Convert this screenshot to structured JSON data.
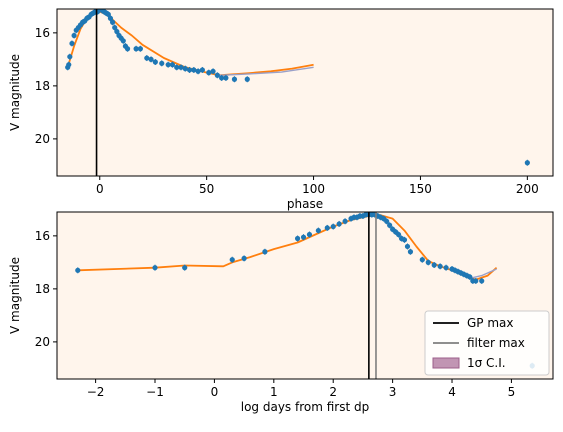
{
  "chart_data": [
    {
      "type": "scatter",
      "xlabel": "phase",
      "ylabel": "V magnitude",
      "xlim": [
        -20,
        212
      ],
      "ylim": [
        21.4,
        15.1
      ],
      "y_inverted": true,
      "background": "#fff5ec",
      "xticks": [
        0,
        50,
        100,
        150,
        200
      ],
      "yticks": [
        16,
        18,
        20
      ],
      "vlines": [
        {
          "x": -1.5,
          "color": "#000000"
        }
      ],
      "series": [
        {
          "kind": "points",
          "color": "#1f77b4",
          "x": [
            -15,
            -14.5,
            -14,
            -13,
            -12,
            -11,
            -10,
            -9,
            -8,
            -7,
            -6,
            -5,
            -4,
            -3,
            -2,
            -1,
            0,
            1,
            2,
            3,
            4,
            5,
            6,
            7,
            8,
            9,
            10,
            11,
            12,
            13,
            17,
            19,
            22,
            24,
            26,
            29,
            32,
            34,
            36,
            38,
            40,
            42,
            44,
            46,
            48,
            51,
            53,
            55,
            57,
            59,
            63,
            69,
            200
          ],
          "y": [
            17.3,
            17.2,
            16.9,
            16.4,
            16.1,
            15.9,
            15.8,
            15.7,
            15.6,
            15.55,
            15.45,
            15.4,
            15.3,
            15.25,
            15.2,
            15.2,
            15.1,
            15.15,
            15.2,
            15.25,
            15.3,
            15.45,
            15.6,
            15.8,
            15.95,
            16.1,
            16.2,
            16.3,
            16.5,
            16.6,
            16.6,
            16.6,
            16.95,
            17.0,
            17.1,
            17.15,
            17.2,
            17.2,
            17.3,
            17.3,
            17.35,
            17.4,
            17.4,
            17.45,
            17.4,
            17.5,
            17.45,
            17.6,
            17.7,
            17.7,
            17.75,
            17.75,
            20.9
          ]
        },
        {
          "kind": "line",
          "color": "#ff7f0e",
          "x": [
            -15,
            -12,
            -9,
            -6,
            -3,
            0,
            3,
            6,
            10,
            15,
            20,
            30,
            40,
            50,
            56,
            60,
            70,
            80,
            90,
            100
          ],
          "y": [
            17.3,
            16.5,
            15.85,
            15.45,
            15.25,
            15.2,
            15.3,
            15.5,
            15.8,
            16.1,
            16.45,
            16.95,
            17.3,
            17.5,
            17.6,
            17.58,
            17.52,
            17.45,
            17.35,
            17.2
          ]
        },
        {
          "kind": "line",
          "color": "#9aa0c8",
          "x": [
            56,
            70,
            85,
            100
          ],
          "y": [
            17.6,
            17.55,
            17.48,
            17.3
          ]
        }
      ]
    },
    {
      "type": "scatter",
      "xlabel": "log days from first dp",
      "ylabel": "V magnitude",
      "xlim": [
        -2.65,
        5.7
      ],
      "ylim": [
        21.4,
        15.1
      ],
      "y_inverted": true,
      "background": "#fff5ec",
      "xticks": [
        -2,
        -1,
        0,
        1,
        2,
        3,
        4,
        5
      ],
      "yticks": [
        16,
        18,
        20
      ],
      "vlines": [
        {
          "x": 2.6,
          "color": "#000000"
        },
        {
          "x": 2.72,
          "color": "#7f7f7f"
        }
      ],
      "series": [
        {
          "kind": "points",
          "color": "#1f77b4",
          "x": [
            -2.3,
            -1.0,
            -0.5,
            0.3,
            0.5,
            0.85,
            1.4,
            1.5,
            1.6,
            1.75,
            1.9,
            2.0,
            2.1,
            2.2,
            2.3,
            2.35,
            2.4,
            2.45,
            2.5,
            2.55,
            2.6,
            2.65,
            2.7,
            2.75,
            2.8,
            2.85,
            2.9,
            2.95,
            3.0,
            3.05,
            3.1,
            3.15,
            3.2,
            3.25,
            3.3,
            3.5,
            3.6,
            3.7,
            3.8,
            3.9,
            4.0,
            4.05,
            4.1,
            4.15,
            4.2,
            4.25,
            4.3,
            4.35,
            4.4,
            4.5,
            5.35
          ],
          "y": [
            17.3,
            17.2,
            17.2,
            16.9,
            16.85,
            16.6,
            16.1,
            16.05,
            15.95,
            15.8,
            15.7,
            15.65,
            15.55,
            15.45,
            15.35,
            15.3,
            15.3,
            15.25,
            15.25,
            15.2,
            15.2,
            15.2,
            15.2,
            15.25,
            15.3,
            15.35,
            15.45,
            15.6,
            15.75,
            15.85,
            15.95,
            16.1,
            16.15,
            16.4,
            16.6,
            16.9,
            17.0,
            17.1,
            17.15,
            17.2,
            17.25,
            17.3,
            17.35,
            17.4,
            17.45,
            17.5,
            17.55,
            17.7,
            17.7,
            17.7,
            20.9
          ]
        },
        {
          "kind": "line",
          "color": "#ff7f0e",
          "x": [
            -2.3,
            -1.0,
            -0.5,
            0.15,
            0.3,
            0.6,
            1.0,
            1.4,
            1.7,
            2.0,
            2.3,
            2.6,
            2.8,
            3.0,
            3.2,
            3.4,
            3.6,
            3.8,
            4.0,
            4.2,
            4.4,
            4.6,
            4.75
          ],
          "y": [
            17.3,
            17.2,
            17.12,
            17.15,
            17.0,
            16.8,
            16.5,
            16.25,
            15.95,
            15.65,
            15.4,
            15.25,
            15.22,
            15.35,
            15.8,
            16.4,
            16.95,
            17.15,
            17.3,
            17.5,
            17.65,
            17.5,
            17.2
          ]
        },
        {
          "kind": "line",
          "color": "#9aa0c8",
          "x": [
            4.3,
            4.5,
            4.75
          ],
          "y": [
            17.6,
            17.5,
            17.25
          ]
        }
      ],
      "legend": {
        "placement": "lower-right",
        "entries": [
          {
            "label": "GP max",
            "color": "#000000",
            "kind": "line"
          },
          {
            "label": "filter max",
            "color": "#7f7f7f",
            "kind": "line"
          },
          {
            "label": "1σ C.I.",
            "color": "#c195b3",
            "kind": "patch"
          }
        ]
      }
    }
  ]
}
